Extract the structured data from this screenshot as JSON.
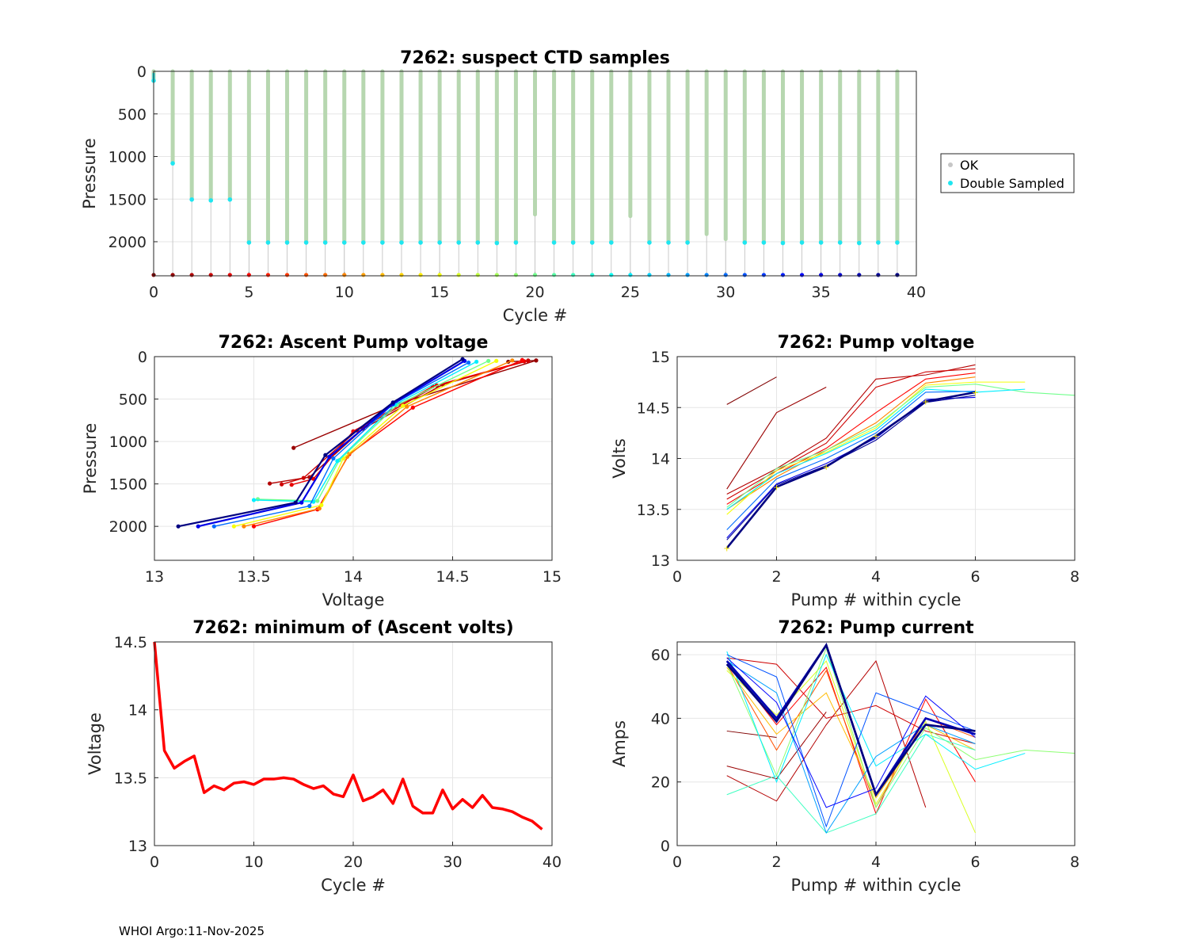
{
  "footer": "WHOI Argo:11-Nov-2025",
  "colors": {
    "ok": "#c6c6c6",
    "ok_bar": "#b7d7b0",
    "double_sampled": "#1ee6f0",
    "min_volts": "#ff0000",
    "grid": "#e6e6e6",
    "marker_yellow": "#f0e000"
  },
  "chart_data": [
    {
      "id": "suspect",
      "type": "scatter",
      "title": "7262: suspect CTD samples",
      "xlabel": "Cycle #",
      "ylabel": "Pressure",
      "xlim": [
        0,
        40
      ],
      "ylim": [
        0,
        2400
      ],
      "y_reversed": true,
      "xticks": [
        0,
        5,
        10,
        15,
        20,
        25,
        30,
        35,
        40
      ],
      "yticks": [
        0,
        500,
        1000,
        1500,
        2000
      ],
      "legend": [
        "OK",
        "Double Sampled"
      ],
      "legend_position": "outside-right",
      "cycles": [
        0,
        1,
        2,
        3,
        4,
        5,
        6,
        7,
        8,
        9,
        10,
        11,
        12,
        13,
        14,
        15,
        16,
        17,
        18,
        19,
        20,
        21,
        22,
        23,
        24,
        25,
        26,
        27,
        28,
        29,
        30,
        31,
        32,
        33,
        34,
        35,
        36,
        37,
        38,
        39
      ],
      "max_pressure": [
        110,
        1080,
        1505,
        1515,
        1505,
        2010,
        2010,
        2010,
        2010,
        2010,
        2010,
        2010,
        2010,
        2010,
        2010,
        2010,
        2010,
        2010,
        2015,
        2010,
        1680,
        2010,
        2010,
        2010,
        2010,
        1700,
        2010,
        2010,
        2010,
        1910,
        1970,
        2010,
        2010,
        2015,
        2010,
        2010,
        2010,
        2015,
        2010,
        2010
      ],
      "double_sampled_pressure": [
        110,
        1080,
        1505,
        1515,
        1505,
        2010,
        2010,
        2010,
        2010,
        2010,
        2010,
        2010,
        2010,
        2010,
        2010,
        2010,
        2010,
        2010,
        2015,
        2010,
        null,
        2010,
        2010,
        2010,
        2010,
        null,
        2010,
        2010,
        2010,
        null,
        null,
        2010,
        2010,
        2015,
        2010,
        2010,
        2010,
        2015,
        2010,
        2010
      ],
      "bottom_pressure": 2390
    },
    {
      "id": "ascent",
      "type": "line",
      "title": "7262: Ascent Pump voltage",
      "xlabel": "Voltage",
      "ylabel": "Pressure",
      "xlim": [
        13,
        15
      ],
      "ylim": [
        0,
        2400
      ],
      "y_reversed": true,
      "xticks": [
        13,
        13.5,
        14,
        14.5,
        15
      ],
      "yticks": [
        0,
        500,
        1000,
        1500,
        2000
      ],
      "series": [
        {
          "cycle": 0,
          "x": [
            14.92,
            14.78
          ],
          "y": [
            45,
            60
          ]
        },
        {
          "cycle": 1,
          "x": [
            14.92,
            14.22,
            13.7
          ],
          "y": [
            45,
            560,
            1075
          ]
        },
        {
          "cycle": 2,
          "x": [
            14.88,
            14.45,
            14.05,
            13.78,
            13.58
          ],
          "y": [
            45,
            330,
            850,
            1420,
            1495
          ]
        },
        {
          "cycle": 3,
          "x": [
            14.88,
            14.42,
            14.02,
            13.75,
            13.64
          ],
          "y": [
            50,
            340,
            870,
            1430,
            1505
          ]
        },
        {
          "cycle": 4,
          "x": [
            14.86,
            14.4,
            14.0,
            13.8,
            13.69
          ],
          "y": [
            55,
            350,
            880,
            1440,
            1510
          ]
        },
        {
          "cycle": 5,
          "x": [
            14.85,
            14.3,
            13.98,
            13.82,
            13.5
          ],
          "y": [
            40,
            600,
            1150,
            1800,
            2000
          ]
        },
        {
          "cycle": 10,
          "x": [
            14.8,
            14.27,
            13.97,
            13.83,
            13.45
          ],
          "y": [
            45,
            590,
            1180,
            1790,
            2000
          ]
        },
        {
          "cycle": 15,
          "x": [
            14.72,
            14.25,
            13.95,
            13.84,
            13.4
          ],
          "y": [
            50,
            580,
            1200,
            1750,
            2000
          ]
        },
        {
          "cycle": 20,
          "x": [
            14.68,
            14.22,
            13.93,
            13.82,
            13.52
          ],
          "y": [
            50,
            570,
            1220,
            1700,
            1680
          ]
        },
        {
          "cycle": 25,
          "x": [
            14.62,
            14.21,
            13.92,
            13.8,
            13.5
          ],
          "y": [
            60,
            565,
            1230,
            1710,
            1690
          ]
        },
        {
          "cycle": 30,
          "x": [
            14.58,
            14.2,
            13.9,
            13.78,
            13.3
          ],
          "y": [
            70,
            560,
            1200,
            1760,
            2000
          ]
        },
        {
          "cycle": 35,
          "x": [
            14.56,
            14.2,
            13.88,
            13.74,
            13.22
          ],
          "y": [
            50,
            555,
            1180,
            1720,
            2000
          ]
        },
        {
          "cycle": 39,
          "x": [
            14.55,
            14.2,
            13.86,
            13.71,
            13.12
          ],
          "y": [
            30,
            540,
            1160,
            1720,
            2000
          ]
        }
      ]
    },
    {
      "id": "pump_voltage",
      "type": "line",
      "title": "7262: Pump voltage",
      "xlabel": "Pump # within cycle",
      "ylabel": "Volts",
      "xlim": [
        0,
        8
      ],
      "ylim": [
        13,
        15
      ],
      "xticks": [
        0,
        2,
        4,
        6,
        8
      ],
      "yticks": [
        13,
        13.5,
        14,
        14.5,
        15
      ],
      "series": [
        {
          "cycle": 0,
          "x": [
            1,
            2
          ],
          "y": [
            14.53,
            14.8
          ]
        },
        {
          "cycle": 1,
          "x": [
            1,
            2,
            3
          ],
          "y": [
            13.7,
            14.45,
            14.7
          ]
        },
        {
          "cycle": 2,
          "x": [
            1,
            2,
            3,
            4,
            5,
            6
          ],
          "y": [
            13.65,
            13.9,
            14.2,
            14.78,
            14.82,
            14.92
          ]
        },
        {
          "cycle": 3,
          "x": [
            1,
            2,
            3,
            4,
            5,
            6
          ],
          "y": [
            13.6,
            13.88,
            14.15,
            14.7,
            14.85,
            14.88
          ]
        },
        {
          "cycle": 5,
          "x": [
            1,
            2,
            3,
            4,
            5,
            6
          ],
          "y": [
            13.55,
            13.85,
            14.1,
            14.45,
            14.78,
            14.84
          ]
        },
        {
          "cycle": 10,
          "x": [
            1,
            2,
            3,
            4,
            5,
            6
          ],
          "y": [
            13.5,
            13.82,
            14.08,
            14.35,
            14.74,
            14.8
          ]
        },
        {
          "cycle": 15,
          "x": [
            1,
            2,
            3,
            4,
            5,
            6,
            7
          ],
          "y": [
            13.45,
            13.88,
            14.06,
            14.3,
            14.72,
            14.75,
            14.75
          ]
        },
        {
          "cycle": 20,
          "x": [
            1,
            2,
            3,
            4,
            5,
            6,
            7,
            8
          ],
          "y": [
            13.52,
            13.9,
            14.08,
            14.32,
            14.7,
            14.73,
            14.65,
            14.62
          ]
        },
        {
          "cycle": 25,
          "x": [
            1,
            2,
            3,
            4,
            5,
            6,
            7
          ],
          "y": [
            13.5,
            13.85,
            14.05,
            14.28,
            14.68,
            14.65,
            14.68
          ]
        },
        {
          "cycle": 30,
          "x": [
            1,
            2,
            3,
            4,
            5,
            6
          ],
          "y": [
            13.3,
            13.8,
            14.0,
            14.25,
            14.65,
            14.66
          ]
        },
        {
          "cycle": 35,
          "x": [
            1,
            2,
            3,
            4,
            5,
            6
          ],
          "y": [
            13.22,
            13.75,
            13.95,
            14.2,
            14.58,
            14.6
          ]
        },
        {
          "cycle": 38,
          "x": [
            1,
            2,
            3,
            4,
            5,
            6
          ],
          "y": [
            13.2,
            13.74,
            13.93,
            14.18,
            14.55,
            14.62
          ]
        },
        {
          "cycle": 39,
          "x": [
            1,
            2,
            3,
            4,
            5,
            6
          ],
          "y": [
            13.12,
            13.72,
            13.92,
            14.22,
            14.56,
            14.65
          ]
        }
      ]
    },
    {
      "id": "min_volts",
      "type": "line",
      "title": "7262: minimum of (Ascent volts)",
      "xlabel": "Cycle #",
      "ylabel": "Voltage",
      "xlim": [
        0,
        40
      ],
      "ylim": [
        13,
        14.5
      ],
      "xticks": [
        0,
        10,
        20,
        30,
        40
      ],
      "yticks": [
        13,
        13.5,
        14,
        14.5
      ],
      "x": [
        0,
        1,
        2,
        3,
        4,
        5,
        6,
        7,
        8,
        9,
        10,
        11,
        12,
        13,
        14,
        15,
        16,
        17,
        18,
        19,
        20,
        21,
        22,
        23,
        24,
        25,
        26,
        27,
        28,
        29,
        30,
        31,
        32,
        33,
        34,
        35,
        36,
        37,
        38,
        39
      ],
      "y": [
        14.5,
        13.7,
        13.57,
        13.62,
        13.66,
        13.39,
        13.44,
        13.41,
        13.46,
        13.47,
        13.45,
        13.49,
        13.49,
        13.5,
        13.49,
        13.45,
        13.42,
        13.44,
        13.38,
        13.36,
        13.52,
        13.33,
        13.36,
        13.41,
        13.31,
        13.49,
        13.29,
        13.24,
        13.24,
        13.41,
        13.27,
        13.34,
        13.28,
        13.37,
        13.28,
        13.27,
        13.25,
        13.21,
        13.18,
        13.12
      ]
    },
    {
      "id": "pump_current",
      "type": "line",
      "title": "7262: Pump current",
      "xlabel": "Pump # within cycle",
      "ylabel": "Amps",
      "xlim": [
        0,
        8
      ],
      "ylim": [
        0,
        64
      ],
      "xticks": [
        0,
        2,
        4,
        6,
        8
      ],
      "yticks": [
        0,
        20,
        40,
        60
      ],
      "series": [
        {
          "cycle": 0,
          "x": [
            1,
            2
          ],
          "y": [
            36,
            34
          ]
        },
        {
          "cycle": 1,
          "x": [
            1,
            2,
            3
          ],
          "y": [
            25,
            21,
            42
          ]
        },
        {
          "cycle": 2,
          "x": [
            1,
            2,
            3,
            4,
            5
          ],
          "y": [
            22,
            14,
            38,
            58,
            12
          ]
        },
        {
          "cycle": 3,
          "x": [
            1,
            2,
            3,
            4,
            5,
            6
          ],
          "y": [
            59,
            57,
            40,
            44,
            36,
            32
          ]
        },
        {
          "cycle": 5,
          "x": [
            1,
            2,
            3,
            4,
            5,
            6
          ],
          "y": [
            58,
            38,
            56,
            10,
            46,
            20
          ]
        },
        {
          "cycle": 8,
          "x": [
            1,
            2,
            3,
            4,
            5,
            6
          ],
          "y": [
            57,
            30,
            55,
            12,
            40,
            34
          ]
        },
        {
          "cycle": 12,
          "x": [
            1,
            2,
            3,
            4,
            5,
            6
          ],
          "y": [
            56,
            35,
            48,
            15,
            38,
            30
          ]
        },
        {
          "cycle": 16,
          "x": [
            1,
            2,
            3,
            4,
            5,
            6
          ],
          "y": [
            55,
            41,
            58,
            13,
            39,
            4
          ]
        },
        {
          "cycle": 19,
          "x": [
            1,
            2,
            3,
            4,
            5,
            6,
            7,
            8
          ],
          "y": [
            57,
            22,
            62,
            12,
            37,
            27,
            30,
            29
          ]
        },
        {
          "cycle": 22,
          "x": [
            1,
            2,
            3,
            4,
            5,
            6
          ],
          "y": [
            16,
            22,
            4,
            10,
            35,
            30
          ]
        },
        {
          "cycle": 25,
          "x": [
            1,
            2,
            3,
            4,
            5,
            6,
            7
          ],
          "y": [
            61,
            20,
            60,
            25,
            35,
            24,
            29
          ]
        },
        {
          "cycle": 28,
          "x": [
            1,
            2,
            3,
            4,
            5,
            6
          ],
          "y": [
            58,
            48,
            4,
            28,
            38,
            32
          ]
        },
        {
          "cycle": 31,
          "x": [
            1,
            2,
            3,
            4,
            5,
            6
          ],
          "y": [
            60,
            53,
            6,
            48,
            42,
            36
          ]
        },
        {
          "cycle": 34,
          "x": [
            1,
            2,
            3,
            4,
            5,
            6
          ],
          "y": [
            59,
            45,
            12,
            18,
            47,
            34
          ]
        },
        {
          "cycle": 37,
          "x": [
            1,
            2,
            3,
            4,
            5,
            6
          ],
          "y": [
            58,
            40,
            63,
            16,
            40,
            35
          ]
        },
        {
          "cycle": 39,
          "x": [
            1,
            2,
            3,
            4,
            5,
            6
          ],
          "y": [
            57,
            39,
            63,
            16,
            38,
            36
          ]
        }
      ]
    }
  ]
}
